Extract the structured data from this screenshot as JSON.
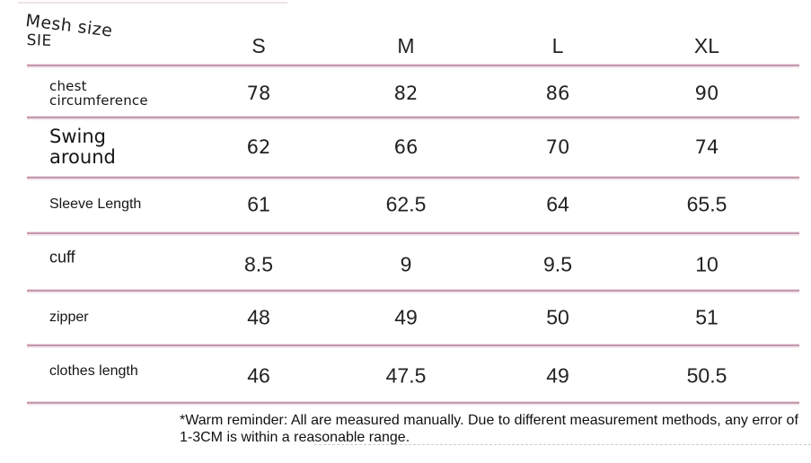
{
  "corner": {
    "line1": "Mesh size",
    "line2": "SIE"
  },
  "chart_data": {
    "type": "table",
    "title": "Mesh size SIE",
    "columns": [
      "S",
      "M",
      "L",
      "XL"
    ],
    "rows": [
      {
        "label": "chest circumference",
        "label_lines": [
          "chest",
          "circumference"
        ],
        "values": [
          78,
          82,
          86,
          90
        ]
      },
      {
        "label": "Swing around",
        "label_lines": [
          "Swing",
          "around"
        ],
        "values": [
          62,
          66,
          70,
          74
        ]
      },
      {
        "label": "Sleeve Length",
        "label_lines": [
          "Sleeve Length"
        ],
        "values": [
          61,
          62.5,
          64,
          65.5
        ]
      },
      {
        "label": "cuff",
        "label_lines": [
          "cuff"
        ],
        "values": [
          8.5,
          9,
          9.5,
          10
        ]
      },
      {
        "label": "zipper",
        "label_lines": [
          "zipper"
        ],
        "values": [
          48,
          49,
          50,
          51
        ]
      },
      {
        "label": "clothes length",
        "label_lines": [
          "clothes length"
        ],
        "values": [
          46,
          47.5,
          49,
          50.5
        ]
      }
    ],
    "footnote": "*Warm reminder: All are measured manually. Due to different measurement methods, any error of 1-3CM is within a reasonable range.",
    "units": "cm (implied)",
    "colors": {
      "divider": "#c799ae",
      "text": "#1e1e1e"
    }
  }
}
